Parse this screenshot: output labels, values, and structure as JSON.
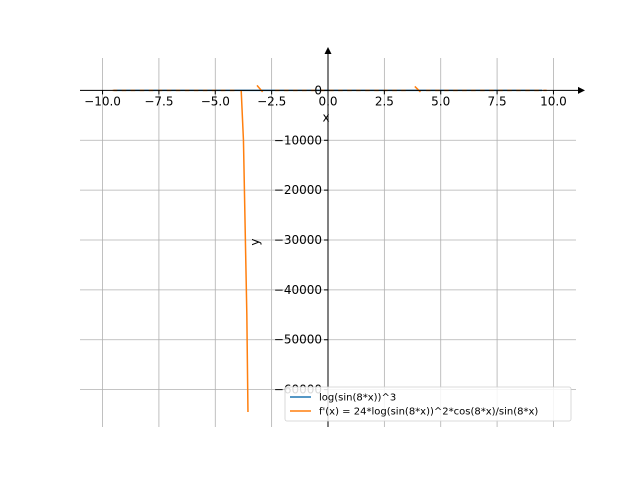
{
  "chart_data": {
    "type": "line",
    "title": "",
    "xlabel": "x",
    "ylabel": "y",
    "xlim": [
      -11,
      11
    ],
    "ylim": [
      -67500,
      6500
    ],
    "x_ticks": [
      -10.0,
      -7.5,
      -5.0,
      -2.5,
      0.0,
      2.5,
      5.0,
      7.5,
      10.0
    ],
    "x_tick_labels": [
      "−10.0",
      "−7.5",
      "−5.0",
      "−2.5",
      "0.0",
      "2.5",
      "5.0",
      "7.5",
      "10.0"
    ],
    "y_ticks": [
      0,
      -10000,
      -20000,
      -30000,
      -40000,
      -50000,
      -60000
    ],
    "y_tick_labels": [
      "0",
      "−10000",
      "−20000",
      "−30000",
      "−40000",
      "−50000",
      "−60000"
    ],
    "grid": true,
    "legend_position": "lower-right",
    "series": [
      {
        "name": "log(sin(8*x))^3",
        "color": "#1f77b4",
        "x": [
          -9.5,
          9.5
        ],
        "y": [
          0,
          0
        ]
      },
      {
        "name": "f'(x) = 24*log(sin(8*x))^2*cos(8*x)/sin(8*x)",
        "color": "#ff7f0e",
        "segments": [
          {
            "x": [
              -9.55,
              -9.35
            ],
            "y": [
              0,
              0
            ]
          },
          {
            "x": [
              -9.15,
              -8.95
            ],
            "y": [
              0,
              0
            ]
          },
          {
            "x": [
              -8.75,
              -8.55
            ],
            "y": [
              0,
              0
            ]
          },
          {
            "x": [
              -8.35,
              -8.15
            ],
            "y": [
              0,
              0
            ]
          },
          {
            "x": [
              -7.95,
              -7.75
            ],
            "y": [
              0,
              0
            ]
          },
          {
            "x": [
              -7.55,
              -7.35
            ],
            "y": [
              0,
              0
            ]
          },
          {
            "x": [
              -7.15,
              -6.95
            ],
            "y": [
              0,
              0
            ]
          },
          {
            "x": [
              -6.75,
              -6.55
            ],
            "y": [
              0,
              0
            ]
          },
          {
            "x": [
              -6.35,
              -6.15
            ],
            "y": [
              0,
              0
            ]
          },
          {
            "x": [
              -5.95,
              -5.75
            ],
            "y": [
              0,
              0
            ]
          },
          {
            "x": [
              -5.55,
              -5.35
            ],
            "y": [
              0,
              0
            ]
          },
          {
            "x": [
              -5.15,
              -4.95
            ],
            "y": [
              0,
              0
            ]
          },
          {
            "x": [
              -4.75,
              -4.55
            ],
            "y": [
              0,
              0
            ]
          },
          {
            "x": [
              -4.35,
              -4.15
            ],
            "y": [
              0,
              0
            ]
          },
          {
            "x": [
              -3.85,
              -3.75,
              -3.6,
              -3.55
            ],
            "y": [
              0,
              -10000,
              -45000,
              -64500
            ]
          },
          {
            "x": [
              -3.15,
              -2.9
            ],
            "y": [
              1000,
              -300
            ]
          },
          {
            "x": [
              -2.35,
              -2.15
            ],
            "y": [
              0,
              0
            ]
          },
          {
            "x": [
              -1.95,
              -1.75
            ],
            "y": [
              0,
              0
            ]
          },
          {
            "x": [
              -1.55,
              -1.35
            ],
            "y": [
              0,
              0
            ]
          },
          {
            "x": [
              -1.15,
              -0.95
            ],
            "y": [
              0,
              0
            ]
          },
          {
            "x": [
              -0.75,
              -0.55
            ],
            "y": [
              0,
              0
            ]
          },
          {
            "x": [
              -0.35,
              -0.15
            ],
            "y": [
              0,
              0
            ]
          },
          {
            "x": [
              0.05,
              0.25
            ],
            "y": [
              0,
              0
            ]
          },
          {
            "x": [
              0.45,
              0.65
            ],
            "y": [
              0,
              0
            ]
          },
          {
            "x": [
              0.85,
              1.05
            ],
            "y": [
              0,
              0
            ]
          },
          {
            "x": [
              1.25,
              1.45
            ],
            "y": [
              0,
              0
            ]
          },
          {
            "x": [
              1.65,
              1.85
            ],
            "y": [
              0,
              0
            ]
          },
          {
            "x": [
              2.05,
              2.25
            ],
            "y": [
              0,
              0
            ]
          },
          {
            "x": [
              2.45,
              2.65
            ],
            "y": [
              0,
              0
            ]
          },
          {
            "x": [
              2.85,
              3.05
            ],
            "y": [
              0,
              0
            ]
          },
          {
            "x": [
              3.25,
              3.45
            ],
            "y": [
              0,
              0
            ]
          },
          {
            "x": [
              3.85,
              4.1
            ],
            "y": [
              800,
              -300
            ]
          },
          {
            "x": [
              4.35,
              4.55
            ],
            "y": [
              0,
              0
            ]
          },
          {
            "x": [
              4.75,
              4.95
            ],
            "y": [
              0,
              0
            ]
          },
          {
            "x": [
              5.15,
              5.35
            ],
            "y": [
              0,
              0
            ]
          },
          {
            "x": [
              5.55,
              5.75
            ],
            "y": [
              0,
              0
            ]
          },
          {
            "x": [
              5.95,
              6.15
            ],
            "y": [
              0,
              0
            ]
          },
          {
            "x": [
              6.35,
              6.55
            ],
            "y": [
              0,
              0
            ]
          },
          {
            "x": [
              6.75,
              6.95
            ],
            "y": [
              0,
              0
            ]
          },
          {
            "x": [
              7.15,
              7.35
            ],
            "y": [
              0,
              0
            ]
          },
          {
            "x": [
              7.55,
              7.75
            ],
            "y": [
              0,
              0
            ]
          },
          {
            "x": [
              7.95,
              8.15
            ],
            "y": [
              0,
              0
            ]
          },
          {
            "x": [
              8.35,
              8.55
            ],
            "y": [
              0,
              0
            ]
          },
          {
            "x": [
              8.75,
              8.95
            ],
            "y": [
              0,
              0
            ]
          },
          {
            "x": [
              9.15,
              9.35
            ],
            "y": [
              0,
              0
            ]
          },
          {
            "x": [
              9.55,
              9.7
            ],
            "y": [
              0,
              0
            ]
          }
        ]
      }
    ]
  }
}
